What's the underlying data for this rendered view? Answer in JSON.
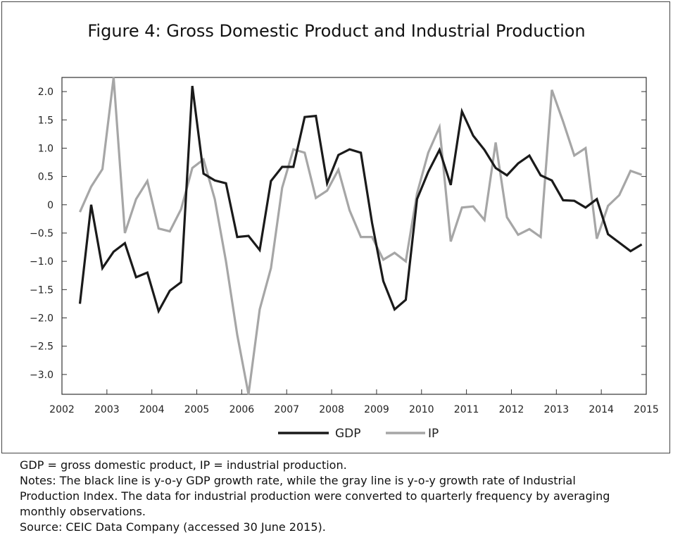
{
  "chart_data": {
    "type": "line",
    "title": "Figure 4: Gross Domestic Product and Industrial Production",
    "xlabel": "",
    "ylabel": "",
    "x_ticks": [
      "2002",
      "2003",
      "2004",
      "2005",
      "2006",
      "2007",
      "2008",
      "2009",
      "2010",
      "2011",
      "2012",
      "2013",
      "2014",
      "2015"
    ],
    "y_ticks": [
      "2.0",
      "1.5",
      "1.0",
      "0.5",
      "0",
      "−0.5",
      "−1.0",
      "−1.5",
      "−2.0",
      "−2.5",
      "−3.0"
    ],
    "y_tick_values": [
      2.0,
      1.5,
      1.0,
      0.5,
      0,
      -0.5,
      -1.0,
      -1.5,
      -2.0,
      -2.5,
      -3.0
    ],
    "xlim": [
      2002,
      2015
    ],
    "ylim": [
      -3.35,
      2.25
    ],
    "legend_position": "bottom-center",
    "series": [
      {
        "name": "GDP",
        "color": "#1a1a1a",
        "x": [
          2002.4,
          2002.65,
          2002.9,
          2003.15,
          2003.4,
          2003.65,
          2003.9,
          2004.15,
          2004.4,
          2004.65,
          2004.9,
          2005.15,
          2005.4,
          2005.65,
          2005.9,
          2006.15,
          2006.4,
          2006.65,
          2006.9,
          2007.15,
          2007.4,
          2007.65,
          2007.9,
          2008.15,
          2008.4,
          2008.65,
          2008.9,
          2009.15,
          2009.4,
          2009.65,
          2009.9,
          2010.15,
          2010.4,
          2010.65,
          2010.9,
          2011.15,
          2011.4,
          2011.65,
          2011.9,
          2012.15,
          2012.4,
          2012.65,
          2012.9,
          2013.15,
          2013.4,
          2013.65,
          2013.9,
          2014.15,
          2014.4,
          2014.65,
          2014.9
        ],
        "values": [
          -1.75,
          0.0,
          -1.12,
          -0.83,
          -0.68,
          -1.28,
          -1.2,
          -1.88,
          -1.52,
          -1.37,
          2.1,
          0.55,
          0.43,
          0.38,
          -0.57,
          -0.55,
          -0.8,
          0.42,
          0.67,
          0.67,
          1.55,
          1.57,
          0.38,
          0.88,
          0.98,
          0.92,
          -0.32,
          -1.35,
          -1.85,
          -1.68,
          0.1,
          0.58,
          0.97,
          0.35,
          1.65,
          1.22,
          0.97,
          0.65,
          0.52,
          0.73,
          0.87,
          0.52,
          0.43,
          0.08,
          0.07,
          -0.05,
          0.1,
          -0.52,
          -0.67,
          -0.82,
          -0.7
        ]
      },
      {
        "name": "IP",
        "color": "#a6a6a6",
        "x": [
          2002.4,
          2002.65,
          2002.9,
          2003.15,
          2003.4,
          2003.65,
          2003.9,
          2004.15,
          2004.4,
          2004.65,
          2004.9,
          2005.15,
          2005.4,
          2005.65,
          2005.9,
          2006.15,
          2006.4,
          2006.65,
          2006.9,
          2007.15,
          2007.4,
          2007.65,
          2007.9,
          2008.15,
          2008.4,
          2008.65,
          2008.9,
          2009.15,
          2009.4,
          2009.65,
          2009.9,
          2010.15,
          2010.4,
          2010.65,
          2010.9,
          2011.15,
          2011.4,
          2011.65,
          2011.9,
          2012.15,
          2012.4,
          2012.65,
          2012.9,
          2013.15,
          2013.4,
          2013.65,
          2013.9,
          2014.15,
          2014.4,
          2014.65,
          2014.9
        ],
        "values": [
          -0.13,
          0.32,
          0.63,
          2.25,
          -0.5,
          0.1,
          0.42,
          -0.42,
          -0.47,
          -0.08,
          0.65,
          0.8,
          0.1,
          -1.0,
          -2.3,
          -3.35,
          -1.85,
          -1.12,
          0.3,
          0.98,
          0.92,
          0.12,
          0.25,
          0.62,
          -0.1,
          -0.57,
          -0.57,
          -0.97,
          -0.85,
          -1.0,
          0.2,
          0.92,
          1.37,
          -0.65,
          -0.05,
          -0.03,
          -0.27,
          1.1,
          -0.22,
          -0.53,
          -0.43,
          -0.57,
          2.03,
          1.47,
          0.87,
          1.0,
          -0.6,
          -0.02,
          0.17,
          0.6,
          0.53
        ]
      }
    ]
  },
  "notes": {
    "line1": "GDP = gross domestic product, IP = industrial production.",
    "line2": "Notes: The black line is y-o-y GDP growth rate, while the gray line is y-o-y growth rate of Industrial",
    "line3": "Production Index. The data for industrial production were converted to quarterly frequency by averaging",
    "line4": "monthly observations.",
    "line5": "Source: CEIC Data Company (accessed 30 June 2015)."
  }
}
